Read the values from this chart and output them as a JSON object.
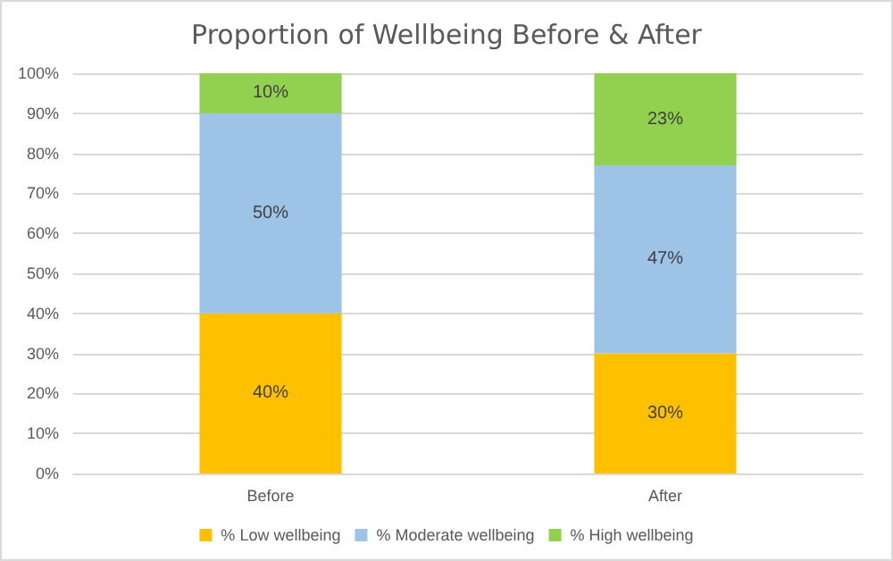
{
  "chart_data": {
    "type": "bar",
    "title": "Proportion of Wellbeing Before & After",
    "categories": [
      "Before",
      "After"
    ],
    "stacked": true,
    "series": [
      {
        "name": "% Low wellbeing",
        "color": "#ffc000",
        "values": [
          40,
          30
        ],
        "value_labels": [
          "40%",
          "30%"
        ]
      },
      {
        "name": "% Moderate wellbeing",
        "color": "#9dc3e6",
        "values": [
          50,
          47
        ],
        "value_labels": [
          "50%",
          "47%"
        ]
      },
      {
        "name": "% High wellbeing",
        "color": "#92d050",
        "values": [
          10,
          23
        ],
        "value_labels": [
          "10%",
          "23%"
        ]
      }
    ],
    "ylim": [
      0,
      100
    ],
    "yticks": [
      {
        "value": 0,
        "label": "0%"
      },
      {
        "value": 10,
        "label": "10%"
      },
      {
        "value": 20,
        "label": "20%"
      },
      {
        "value": 30,
        "label": "30%"
      },
      {
        "value": 40,
        "label": "40%"
      },
      {
        "value": 50,
        "label": "50%"
      },
      {
        "value": 60,
        "label": "60%"
      },
      {
        "value": 70,
        "label": "70%"
      },
      {
        "value": 80,
        "label": "80%"
      },
      {
        "value": 90,
        "label": "90%"
      },
      {
        "value": 100,
        "label": "100%"
      }
    ],
    "grid": "y",
    "legend": "bottom"
  }
}
